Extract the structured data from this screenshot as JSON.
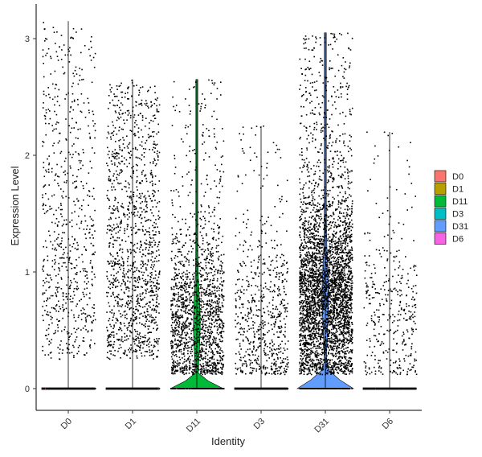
{
  "chart_data": {
    "type": "violin",
    "xlabel": "Identity",
    "ylabel": "Expression Level",
    "categories": [
      "D0",
      "D1",
      "D11",
      "D3",
      "D31",
      "D6"
    ],
    "colors": {
      "D0": "#F8766D",
      "D1": "#B79F00",
      "D11": "#00BA38",
      "D3": "#00BFC4",
      "D31": "#619CFF",
      "D6": "#F564E3"
    },
    "ylim": [
      -0.15,
      3.3
    ],
    "yticks": [
      0,
      1,
      2,
      3
    ],
    "grid": false,
    "legend_position": "right",
    "series": [
      {
        "name": "D0",
        "max": 3.15,
        "points_above_zero": 700,
        "median_nonzero": 1.2
      },
      {
        "name": "D1",
        "max": 2.65,
        "points_above_zero": 1300,
        "median_nonzero": 1.0
      },
      {
        "name": "D11",
        "max": 2.65,
        "points_above_zero": 1600,
        "median_nonzero": 0.55
      },
      {
        "name": "D3",
        "max": 2.25,
        "points_above_zero": 650,
        "median_nonzero": 0.55
      },
      {
        "name": "D31",
        "max": 3.05,
        "points_above_zero": 3800,
        "median_nonzero": 0.8
      },
      {
        "name": "D6",
        "max": 2.2,
        "points_above_zero": 380,
        "median_nonzero": 0.6
      }
    ]
  }
}
